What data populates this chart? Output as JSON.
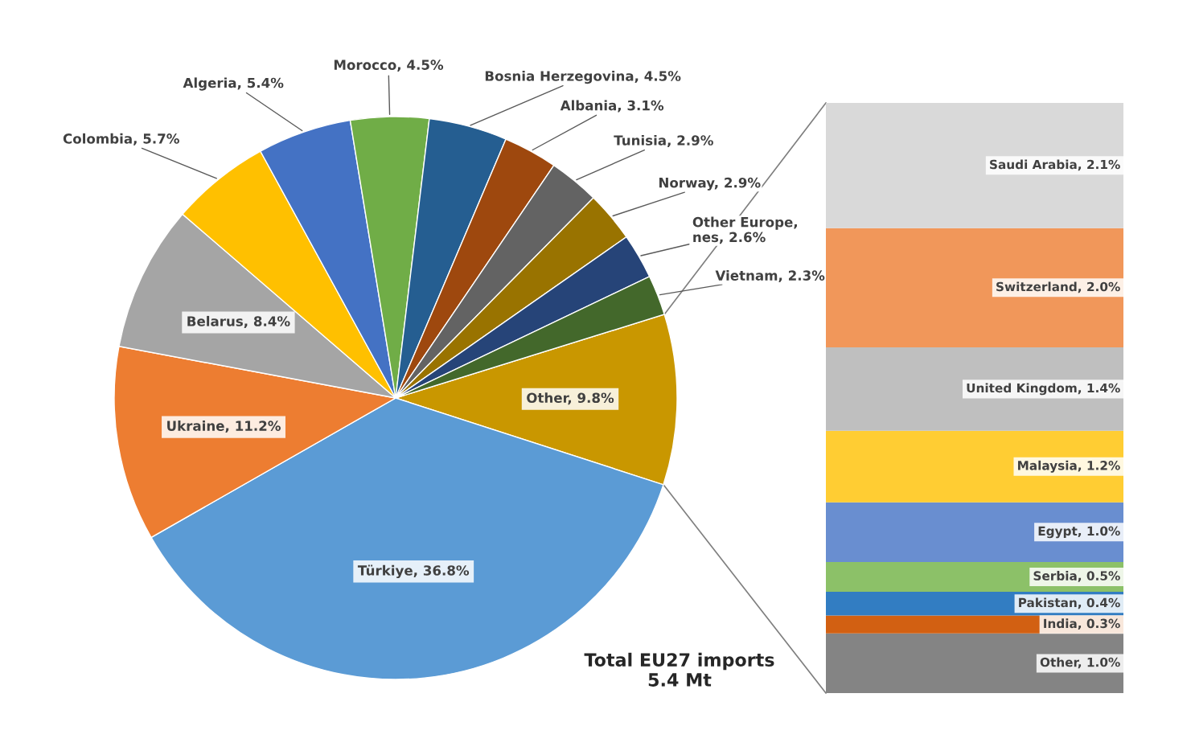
{
  "chart_data": [
    {
      "type": "pie",
      "categories": [
        "Other",
        "Türkiye",
        "Ukraine",
        "Belarus",
        "Colombia",
        "Algeria",
        "Morocco",
        "Bosnia Herzegovina",
        "Albania",
        "Tunisia",
        "Norway",
        "Other Europe,\nnes",
        "Vietnam"
      ],
      "values": [
        9.8,
        36.8,
        11.2,
        8.4,
        5.7,
        5.4,
        4.5,
        4.5,
        3.1,
        2.9,
        2.9,
        2.6,
        2.3
      ],
      "colors": [
        "#c99700",
        "#5b9bd5",
        "#ed7d31",
        "#a5a5a5",
        "#ffc000",
        "#4472c4",
        "#70ad47",
        "#255e91",
        "#9e480e",
        "#636363",
        "#997300",
        "#264478",
        "#43682b"
      ],
      "value_labels": [
        "9.8%",
        "36.8%",
        "11.2%",
        "8.4%",
        "5.7%",
        "5.4%",
        "4.5%",
        "4.5%",
        "3.1%",
        "2.9%",
        "2.9%",
        "2.6%",
        "2.3%"
      ],
      "annotations": [
        "Total EU27 imports\n5.4 Mt"
      ]
    },
    {
      "type": "bar",
      "stacked": true,
      "categories": [
        null
      ],
      "series": [
        {
          "color": "#848484",
          "values": [
            1.0
          ],
          "value_labels": [
            "Other, 1.0%"
          ]
        },
        {
          "color": "#d26012",
          "values": [
            0.3
          ],
          "value_labels": [
            "India, 0.3%"
          ]
        },
        {
          "color": "#327dc2",
          "values": [
            0.4
          ],
          "value_labels": [
            "Pakistan, 0.4%"
          ]
        },
        {
          "color": "#8cc168",
          "values": [
            0.5
          ],
          "value_labels": [
            "Serbia, 0.5%"
          ]
        },
        {
          "color": "#698ed0",
          "values": [
            1.0
          ],
          "value_labels": [
            "Egypt, 1.0%"
          ]
        },
        {
          "color": "#ffcd33",
          "values": [
            1.2
          ],
          "value_labels": [
            "Malaysia, 1.2%"
          ]
        },
        {
          "color": "#bfbfbf",
          "values": [
            1.4
          ],
          "value_labels": [
            "United Kingdom, 1.4%"
          ]
        },
        {
          "color": "#f1975a",
          "values": [
            2.0
          ],
          "value_labels": [
            "Switzerland, 2.0%"
          ]
        },
        {
          "color": "#d9d9d9",
          "values": [
            2.1
          ],
          "value_labels": [
            "Saudi Arabia, 2.1%"
          ]
        }
      ]
    }
  ]
}
